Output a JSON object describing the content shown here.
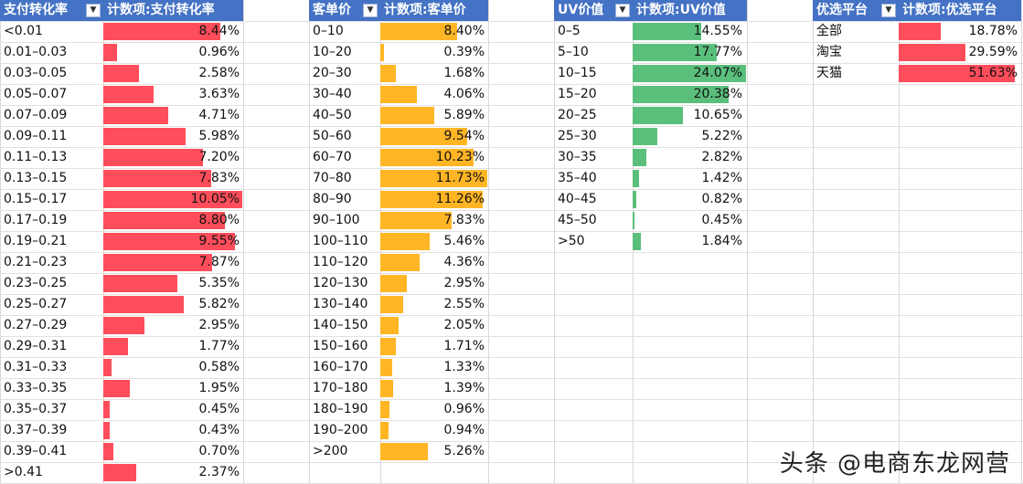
{
  "tables": [
    {
      "name": "conversion",
      "header_label": "支付转化率",
      "header_value": "计数项:支付转化率",
      "bar_color": "#ff4d5b",
      "rows": [
        {
          "label": "<0.01",
          "value": 8.44,
          "text": "8.44%"
        },
        {
          "label": "0.01–0.03",
          "value": 0.96,
          "text": "0.96%"
        },
        {
          "label": "0.03–0.05",
          "value": 2.58,
          "text": "2.58%"
        },
        {
          "label": "0.05–0.07",
          "value": 3.63,
          "text": "3.63%"
        },
        {
          "label": "0.07–0.09",
          "value": 4.71,
          "text": "4.71%"
        },
        {
          "label": "0.09–0.11",
          "value": 5.98,
          "text": "5.98%"
        },
        {
          "label": "0.11–0.13",
          "value": 7.2,
          "text": "7.20%"
        },
        {
          "label": "0.13–0.15",
          "value": 7.83,
          "text": "7.83%"
        },
        {
          "label": "0.15–0.17",
          "value": 10.05,
          "text": "10.05%"
        },
        {
          "label": "0.17–0.19",
          "value": 8.8,
          "text": "8.80%"
        },
        {
          "label": "0.19–0.21",
          "value": 9.55,
          "text": "9.55%"
        },
        {
          "label": "0.21–0.23",
          "value": 7.87,
          "text": "7.87%"
        },
        {
          "label": "0.23–0.25",
          "value": 5.35,
          "text": "5.35%"
        },
        {
          "label": "0.25–0.27",
          "value": 5.82,
          "text": "5.82%"
        },
        {
          "label": "0.27–0.29",
          "value": 2.95,
          "text": "2.95%"
        },
        {
          "label": "0.29–0.31",
          "value": 1.77,
          "text": "1.77%"
        },
        {
          "label": "0.31–0.33",
          "value": 0.58,
          "text": "0.58%"
        },
        {
          "label": "0.33–0.35",
          "value": 1.95,
          "text": "1.95%"
        },
        {
          "label": "0.35–0.37",
          "value": 0.45,
          "text": "0.45%"
        },
        {
          "label": "0.37–0.39",
          "value": 0.43,
          "text": "0.43%"
        },
        {
          "label": "0.39–0.41",
          "value": 0.7,
          "text": "0.70%"
        },
        {
          "label": ">0.41",
          "value": 2.37,
          "text": "2.37%"
        }
      ]
    },
    {
      "name": "unit-price",
      "header_label": "客单价",
      "header_value": "计数项:客单价",
      "bar_color": "#ffb524",
      "rows": [
        {
          "label": "0–10",
          "value": 8.4,
          "text": "8.40%"
        },
        {
          "label": "10–20",
          "value": 0.39,
          "text": "0.39%"
        },
        {
          "label": "20–30",
          "value": 1.68,
          "text": "1.68%"
        },
        {
          "label": "30–40",
          "value": 4.06,
          "text": "4.06%"
        },
        {
          "label": "40–50",
          "value": 5.89,
          "text": "5.89%"
        },
        {
          "label": "50–60",
          "value": 9.54,
          "text": "9.54%"
        },
        {
          "label": "60–70",
          "value": 10.23,
          "text": "10.23%"
        },
        {
          "label": "70–80",
          "value": 11.73,
          "text": "11.73%"
        },
        {
          "label": "80–90",
          "value": 11.26,
          "text": "11.26%"
        },
        {
          "label": "90–100",
          "value": 7.83,
          "text": "7.83%"
        },
        {
          "label": "100–110",
          "value": 5.46,
          "text": "5.46%"
        },
        {
          "label": "110–120",
          "value": 4.36,
          "text": "4.36%"
        },
        {
          "label": "120–130",
          "value": 2.95,
          "text": "2.95%"
        },
        {
          "label": "130–140",
          "value": 2.55,
          "text": "2.55%"
        },
        {
          "label": "140–150",
          "value": 2.05,
          "text": "2.05%"
        },
        {
          "label": "150–160",
          "value": 1.71,
          "text": "1.71%"
        },
        {
          "label": "160–170",
          "value": 1.33,
          "text": "1.33%"
        },
        {
          "label": "170–180",
          "value": 1.39,
          "text": "1.39%"
        },
        {
          "label": "180–190",
          "value": 0.96,
          "text": "0.96%"
        },
        {
          "label": "190–200",
          "value": 0.94,
          "text": "0.94%"
        },
        {
          "label": ">200",
          "value": 5.26,
          "text": "5.26%"
        }
      ]
    },
    {
      "name": "uv-value",
      "header_label": "UV价值",
      "header_value": "计数项:UV价值",
      "bar_color": "#5bbf7c",
      "rows": [
        {
          "label": "0–5",
          "value": 14.55,
          "text": "14.55%"
        },
        {
          "label": "5–10",
          "value": 17.77,
          "text": "17.77%"
        },
        {
          "label": "10–15",
          "value": 24.07,
          "text": "24.07%"
        },
        {
          "label": "15–20",
          "value": 20.38,
          "text": "20.38%"
        },
        {
          "label": "20–25",
          "value": 10.65,
          "text": "10.65%"
        },
        {
          "label": "25–30",
          "value": 5.22,
          "text": "5.22%"
        },
        {
          "label": "30–35",
          "value": 2.82,
          "text": "2.82%"
        },
        {
          "label": "35–40",
          "value": 1.42,
          "text": "1.42%"
        },
        {
          "label": "40–45",
          "value": 0.82,
          "text": "0.82%"
        },
        {
          "label": "45–50",
          "value": 0.45,
          "text": "0.45%"
        },
        {
          "label": ">50",
          "value": 1.84,
          "text": "1.84%"
        }
      ]
    },
    {
      "name": "platform",
      "header_label": "优选平台",
      "header_value": "计数项:优选平台",
      "bar_color": "#ff4d5b",
      "rows": [
        {
          "label": "全部",
          "value": 18.78,
          "text": "18.78%"
        },
        {
          "label": "淘宝",
          "value": 29.59,
          "text": "29.59%"
        },
        {
          "label": "天猫",
          "value": 51.63,
          "text": "51.63%"
        }
      ]
    }
  ],
  "watermark": "头条 @电商东龙网营",
  "dropdown_glyph": "▼"
}
